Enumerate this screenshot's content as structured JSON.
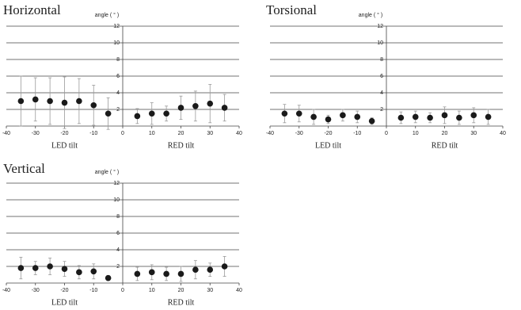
{
  "chart_data": [
    {
      "type": "scatter",
      "title": "Horizontal",
      "ylabel": "angle ( ° )",
      "xlabels": [
        "LED tilt",
        "RED tilt"
      ],
      "x": [
        -35,
        -30,
        -25,
        -20,
        -15,
        -10,
        -5,
        5,
        10,
        15,
        20,
        25,
        30,
        35
      ],
      "values": [
        3.0,
        3.2,
        3.0,
        2.8,
        3.0,
        2.5,
        1.5,
        1.2,
        1.5,
        1.5,
        2.2,
        2.4,
        2.7,
        2.2
      ],
      "errors": [
        3.0,
        2.6,
        2.8,
        3.1,
        2.7,
        2.4,
        1.9,
        0.9,
        1.3,
        0.9,
        1.4,
        1.8,
        2.3,
        1.6
      ],
      "color": "#1a1a1a",
      "xlim": [
        -40,
        40
      ],
      "ylim": [
        0,
        12
      ],
      "xticks": [
        -40,
        -30,
        -20,
        -10,
        0,
        10,
        20,
        30,
        40
      ],
      "yticks": [
        2,
        4,
        6,
        8,
        10,
        12
      ],
      "grid": true
    },
    {
      "type": "scatter",
      "title": "Torsional",
      "ylabel": "angle ( ° )",
      "xlabels": [
        "LED tilt",
        "RED tilt"
      ],
      "x": [
        -35,
        -30,
        -25,
        -20,
        -15,
        -10,
        -5,
        5,
        10,
        15,
        20,
        25,
        30,
        35
      ],
      "values": [
        1.5,
        1.5,
        1.1,
        0.8,
        1.3,
        1.1,
        0.6,
        1.0,
        1.1,
        1.0,
        1.3,
        1.0,
        1.3,
        1.1
      ],
      "errors": [
        1.1,
        1.0,
        0.9,
        0.5,
        0.7,
        0.7,
        0.4,
        0.7,
        0.7,
        0.6,
        1.0,
        0.8,
        0.9,
        0.9
      ],
      "color": "#1a1a1a",
      "xlim": [
        -40,
        40
      ],
      "ylim": [
        0,
        12
      ],
      "xticks": [
        -40,
        -30,
        -20,
        -10,
        0,
        10,
        20,
        30,
        40
      ],
      "yticks": [
        2,
        4,
        6,
        8,
        10,
        12
      ],
      "grid": true
    },
    {
      "type": "scatter",
      "title": "Vertical",
      "ylabel": "angle ( ° )",
      "xlabels": [
        "LED tilt",
        "RED tilt"
      ],
      "x": [
        -35,
        -30,
        -25,
        -20,
        -15,
        -10,
        -5,
        5,
        10,
        15,
        20,
        25,
        30,
        35
      ],
      "values": [
        1.8,
        1.8,
        2.0,
        1.7,
        1.3,
        1.4,
        0.6,
        1.1,
        1.3,
        1.1,
        1.1,
        1.6,
        1.6,
        2.0
      ],
      "errors": [
        1.3,
        0.8,
        1.0,
        0.9,
        0.8,
        0.9,
        0.3,
        0.8,
        0.9,
        0.8,
        0.9,
        1.1,
        0.8,
        1.2
      ],
      "color": "#1a1a1a",
      "xlim": [
        -40,
        40
      ],
      "ylim": [
        0,
        12
      ],
      "xticks": [
        -40,
        -30,
        -20,
        -10,
        0,
        10,
        20,
        30,
        40
      ],
      "yticks": [
        2,
        4,
        6,
        8,
        10,
        12
      ],
      "grid": true
    }
  ]
}
